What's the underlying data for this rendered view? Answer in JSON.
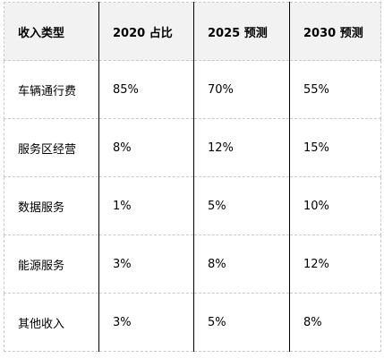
{
  "table": {
    "headers": [
      "收入类型",
      "2020 占比",
      "2025 预测",
      "2030 预测"
    ],
    "rows": [
      [
        "车辆通行费",
        "85%",
        "70%",
        "55%"
      ],
      [
        "服务区经营",
        "8%",
        "12%",
        "15%"
      ],
      [
        "数据服务",
        "1%",
        "5%",
        "10%"
      ],
      [
        "能源服务",
        "3%",
        "8%",
        "12%"
      ],
      [
        "其他收入",
        "3%",
        "5%",
        "8%"
      ]
    ]
  },
  "colors": {
    "header_background": "#f2f2f2",
    "grid_dashed": "#c8c8c8",
    "column_rule": "#000000"
  }
}
